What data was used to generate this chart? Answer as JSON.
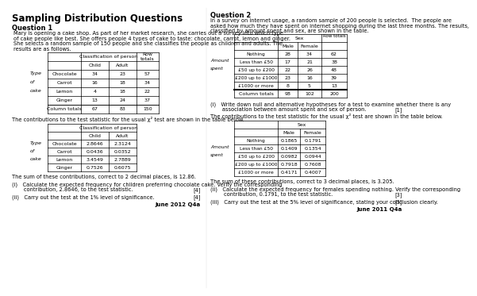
{
  "title": "Sampling Distribution Questions",
  "background_color": "#ffffff",
  "q1_heading": "Question 1",
  "q1_text1": "Mary is opening a cake shop. As part of her market research, she carries out a survey into which type",
  "q1_text2": "of cake people like best. She offers people 4 types of cake to taste: chocolate, carrot, lemon and ginger.",
  "q1_text3": "She selects a random sample of 150 people and she classifies the people as children and adults. The",
  "q1_text4": "results are as follows.",
  "q1_table1_rows": [
    [
      "Type",
      "Chocolate",
      "34",
      "23",
      "57"
    ],
    [
      "of",
      "Carrot",
      "16",
      "18",
      "34"
    ],
    [
      "cake",
      "Lemon",
      "4",
      "18",
      "22"
    ],
    [
      "",
      "Ginger",
      "13",
      "24",
      "37"
    ]
  ],
  "q1_table1_footer": [
    "Column totals",
    "67",
    "83",
    "150"
  ],
  "q1_contrib_text": "The contributions to the test statistic for the usual χ² test are shown in the table below.",
  "q1_table2_rows": [
    [
      "Type",
      "Chocolate",
      "2.8646",
      "2.3124"
    ],
    [
      "of",
      "Carrot",
      "0.0436",
      "0.0352"
    ],
    [
      "cake",
      "Lemon",
      "3.4549",
      "2.7889"
    ],
    [
      "",
      "Ginger",
      "0.7526",
      "0.6075"
    ]
  ],
  "q1_sum_text": "The sum of these contributions, correct to 2 decimal places, is 12.86.",
  "q1_part_i": "(i)   Calculate the expected frequency for children preferring chocolate cake. Verify the corresponding",
  "q1_part_i2": "       contribution, 2.8646, to the test statistic.",
  "q1_part_i_mark": "[4]",
  "q1_part_ii": "(ii)   Carry out the test at the 1% level of significance.",
  "q1_part_ii_mark": "[4]",
  "q1_source": "June 2012 Q4a",
  "q2_heading": "Question 2",
  "q2_text1": "In a survey on internet usage, a random sample of 200 people is selected.  The people are",
  "q2_text2": "asked how much they have spent on internet shopping during the last three months. The results,",
  "q2_text3": "classified by amount spent and sex, are shown in the table.",
  "q2_table1_rows": [
    [
      "",
      "Nothing",
      "28",
      "34",
      "62"
    ],
    [
      "Amount",
      "Less than £50",
      "17",
      "21",
      "38"
    ],
    [
      "spent",
      "£50 up to £200",
      "22",
      "26",
      "48"
    ],
    [
      "",
      "£200 up to £1000",
      "23",
      "16",
      "39"
    ],
    [
      "",
      "£1000 or more",
      "8",
      "5",
      "13"
    ]
  ],
  "q2_table1_footer": [
    "Column totals",
    "98",
    "102",
    "200"
  ],
  "q2_part_i": "(i)   Write down null and alternative hypotheses for a test to examine whether there is any",
  "q2_part_i2": "       association between amount spent and sex of person.",
  "q2_part_i_mark": "[1]",
  "q2_contrib_text": "The contributions to the test statistic for the usual χ² test are shown in the table below.",
  "q2_table2_rows": [
    [
      "",
      "Nothing",
      "0.1865",
      "0.1791"
    ],
    [
      "Amount",
      "Less than £50",
      "0.1409",
      "0.1354"
    ],
    [
      "spent",
      "£50 up to £200",
      "0.0982",
      "0.0944"
    ],
    [
      "",
      "£200 up to £1000",
      "0.7918",
      "0.7608"
    ],
    [
      "",
      "£1000 or more",
      "0.4171",
      "0.4007"
    ]
  ],
  "q2_sum_text": "The sum of these contributions, correct to 3 decimal places, is 3.205.",
  "q2_part_ii": "(ii)   Calculate the expected frequency for females spending nothing. Verify the corresponding",
  "q2_part_ii2": "        contribution, 0.1791, to the test statistic.",
  "q2_part_ii_mark": "[3]",
  "q2_part_iii": "(iii)   Carry out the test at the 5% level of significance, stating your conclusion clearly.",
  "q2_part_iii_mark": "[3]",
  "q2_source": "June 2011 Q4a"
}
